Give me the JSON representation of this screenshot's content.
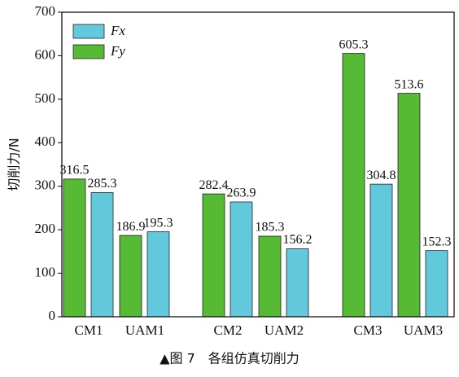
{
  "chart_data": {
    "type": "bar",
    "caption": "▲图 7　各组仿真切削力",
    "y_label": "切削力/N",
    "categories": [
      "CM1",
      "UAM1",
      "CM2",
      "UAM2",
      "CM3",
      "UAM3"
    ],
    "series": [
      {
        "name": "Fx",
        "color": "#62c9dc",
        "values": [
          285.3,
          195.3,
          263.9,
          156.2,
          304.8,
          152.3
        ]
      },
      {
        "name": "Fy",
        "color": "#57ba35",
        "values": [
          316.5,
          186.9,
          282.4,
          185.3,
          605.3,
          513.6
        ]
      }
    ],
    "ylim": [
      0,
      700
    ],
    "yticks": [
      0,
      100,
      200,
      300,
      400,
      500,
      600,
      700
    ],
    "legend": "upper left"
  }
}
